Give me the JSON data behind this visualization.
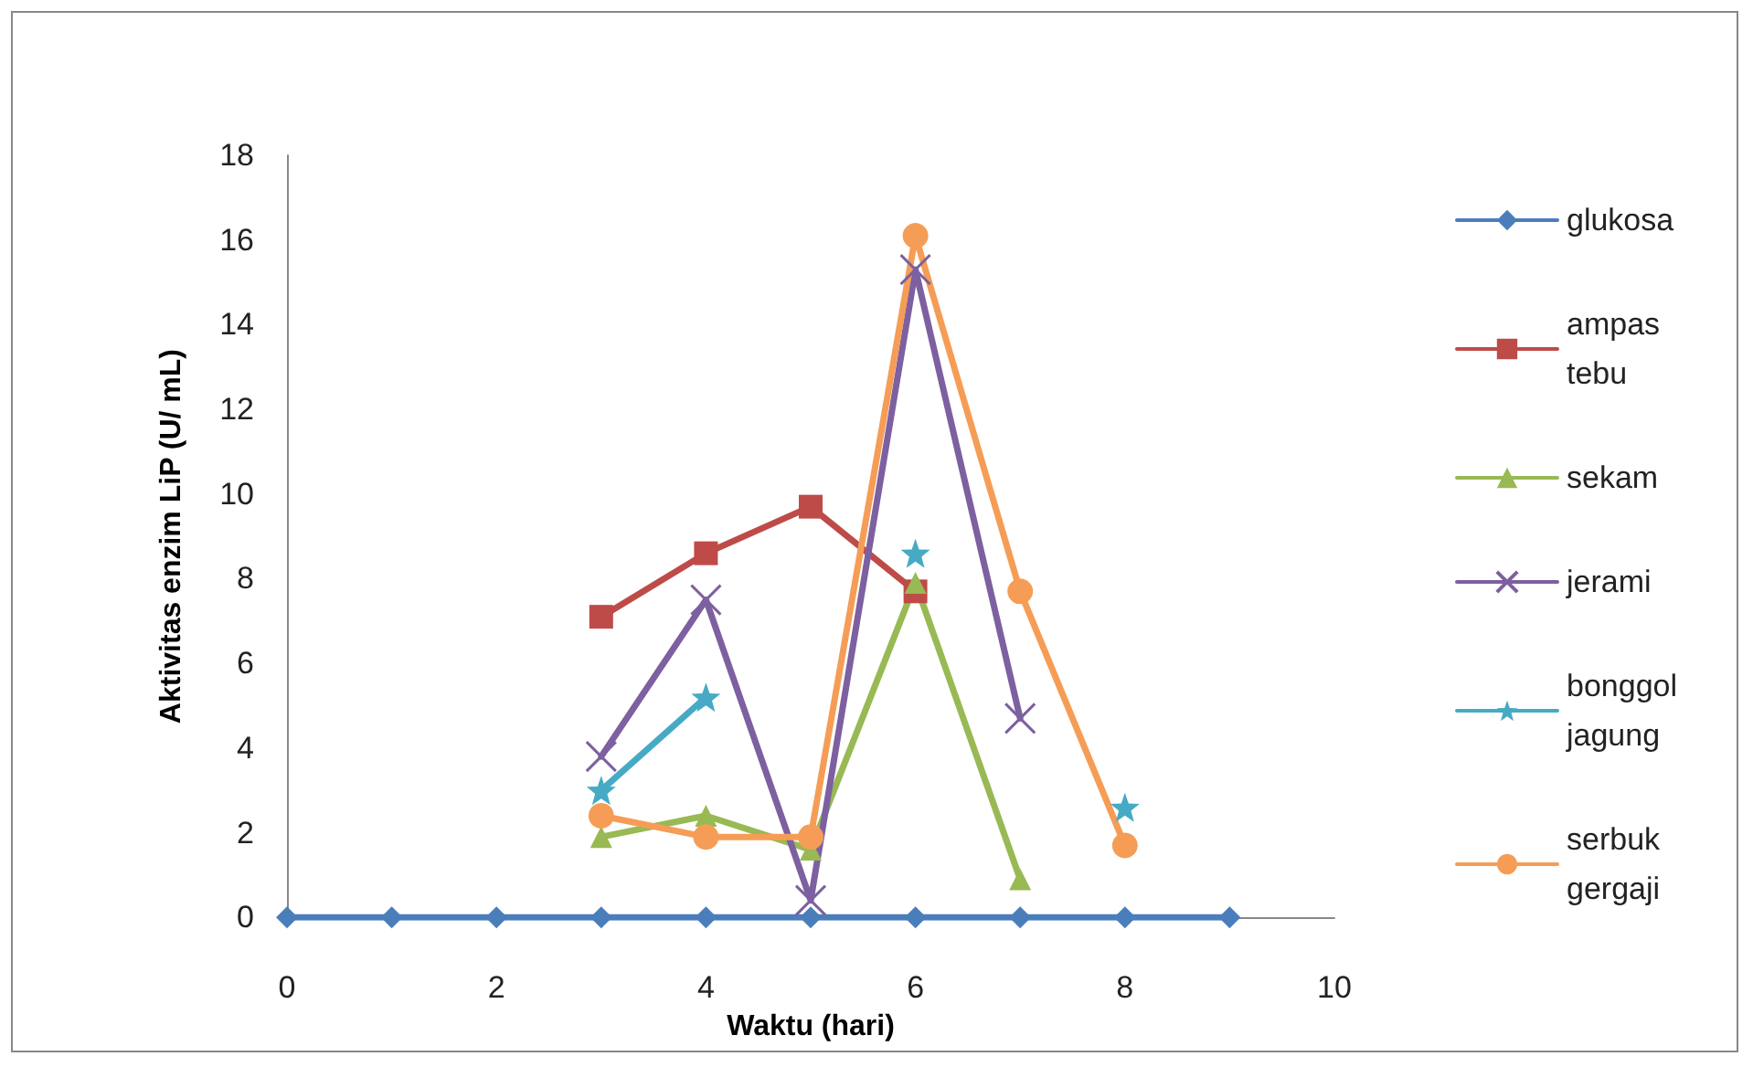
{
  "chart_data": {
    "type": "line",
    "xlabel": "Waktu (hari)",
    "ylabel": "Aktivitas enzim LiP (U/ mL)",
    "x": [
      0,
      1,
      2,
      3,
      4,
      5,
      6,
      7,
      8,
      9
    ],
    "series": [
      {
        "name": "glukosa",
        "color": "#4a7ebb",
        "marker": "diamond",
        "values": [
          0,
          0,
          0,
          0,
          0,
          0,
          0,
          0,
          0,
          0
        ]
      },
      {
        "name": "ampas tebu",
        "color": "#be4b48",
        "marker": "square",
        "values": [
          null,
          null,
          null,
          7.1,
          8.6,
          9.7,
          7.7,
          null,
          null,
          null
        ]
      },
      {
        "name": "sekam",
        "color": "#98b954",
        "marker": "triangle",
        "values": [
          null,
          null,
          null,
          1.9,
          2.4,
          1.6,
          7.9,
          0.9,
          null,
          null
        ]
      },
      {
        "name": "jerami",
        "color": "#7d60a0",
        "marker": "cross",
        "values": [
          null,
          null,
          null,
          3.8,
          7.5,
          0.4,
          15.3,
          4.7,
          null,
          null
        ]
      },
      {
        "name": "bonggol jagung",
        "color": "#46aac5",
        "marker": "star",
        "values": [
          null,
          null,
          null,
          3.0,
          5.2,
          null,
          8.6,
          null,
          2.6,
          null
        ]
      },
      {
        "name": "serbuk gergaji",
        "color": "#f59d56",
        "marker": "circle",
        "values": [
          null,
          null,
          null,
          2.4,
          1.9,
          1.9,
          16.1,
          7.7,
          1.7,
          null
        ]
      }
    ],
    "xlim": [
      0,
      10
    ],
    "xticks": [
      0,
      2,
      4,
      6,
      8,
      10
    ],
    "ylim": [
      0,
      18
    ],
    "yticks": [
      0,
      2,
      4,
      6,
      8,
      10,
      12,
      14,
      16,
      18
    ],
    "grid": false,
    "legend": "right",
    "line_style": "solid"
  }
}
